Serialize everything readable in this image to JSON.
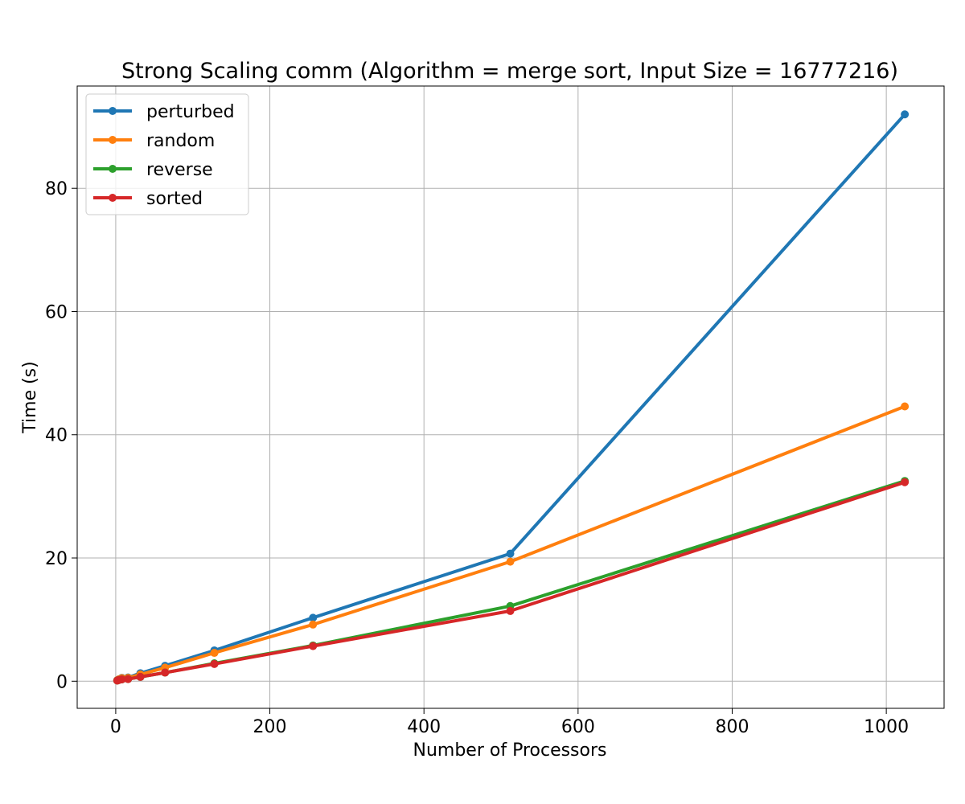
{
  "chart_data": {
    "type": "line",
    "title": "Strong Scaling comm (Algorithm = merge sort, Input Size = 16777216)",
    "xlabel": "Number of Processors",
    "ylabel": "Time (s)",
    "xlim": [
      -50,
      1075
    ],
    "ylim": [
      -4.4,
      96.6
    ],
    "xticks": [
      0,
      200,
      400,
      600,
      800,
      1000
    ],
    "yticks": [
      0,
      20,
      40,
      60,
      80
    ],
    "grid": true,
    "legend_position": "top-left",
    "x": [
      2,
      4,
      8,
      16,
      32,
      64,
      128,
      256,
      512,
      1024
    ],
    "series": [
      {
        "name": "perturbed",
        "color": "#1f77b4",
        "values": [
          0.15,
          0.3,
          0.55,
          0.6,
          1.3,
          2.5,
          5.0,
          10.3,
          20.7,
          92.0
        ]
      },
      {
        "name": "random",
        "color": "#ff7f0e",
        "values": [
          0.15,
          0.3,
          0.5,
          0.55,
          1.1,
          2.2,
          4.6,
          9.2,
          19.4,
          44.6
        ]
      },
      {
        "name": "reverse",
        "color": "#2ca02c",
        "values": [
          0.1,
          0.2,
          0.3,
          0.35,
          0.7,
          1.4,
          2.9,
          5.8,
          12.2,
          32.5
        ]
      },
      {
        "name": "sorted",
        "color": "#d62728",
        "values": [
          0.1,
          0.2,
          0.3,
          0.35,
          0.7,
          1.4,
          2.8,
          5.7,
          11.4,
          32.3
        ]
      }
    ]
  }
}
